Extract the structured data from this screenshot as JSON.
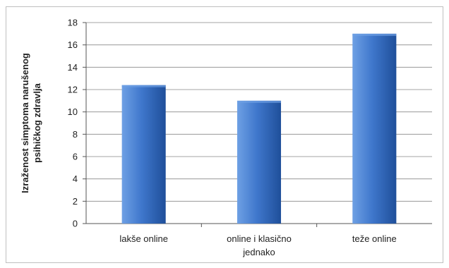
{
  "chart_data": {
    "type": "bar",
    "ylabel": [
      "Izraženost simptoma narušenog",
      "psihičkog zdravlja"
    ],
    "categories": [
      [
        "lakše online"
      ],
      [
        "online i klasično",
        "jednako"
      ],
      [
        "teže online"
      ]
    ],
    "values": [
      12.4,
      11.0,
      17.0
    ],
    "ylim": [
      0,
      18
    ],
    "yticks": [
      0,
      2,
      4,
      6,
      8,
      10,
      12,
      14,
      16,
      18
    ],
    "grid": true,
    "legend": "none",
    "colors": {
      "bar_light": "#6ea0e4",
      "bar_main": "#3f77cc",
      "bar_dark": "#1f4f9a",
      "grid": "#888888"
    }
  }
}
